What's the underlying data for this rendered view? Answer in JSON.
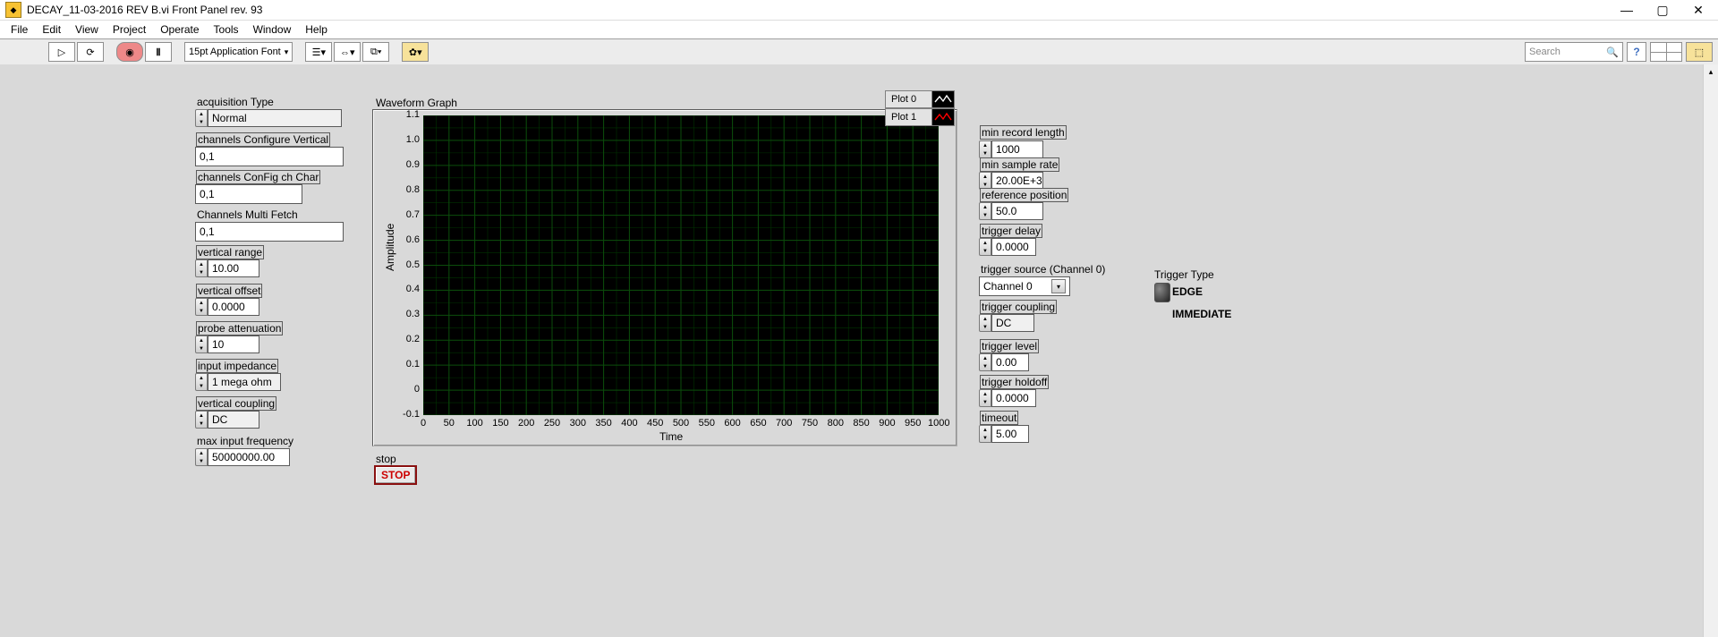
{
  "window": {
    "title": "DECAY_11-03-2016 REV B.vi Front Panel rev. 93"
  },
  "menu": [
    "File",
    "Edit",
    "View",
    "Project",
    "Operate",
    "Tools",
    "Window",
    "Help"
  ],
  "toolbar": {
    "font": "15pt Application Font",
    "search_placeholder": "Search"
  },
  "left": {
    "acqType": {
      "label": "acquisition Type",
      "value": "Normal"
    },
    "chCfgVert": {
      "label": "channels Configure Vertical",
      "value": "0,1"
    },
    "chCfgChar": {
      "label": "channels ConFig ch Char",
      "value": "0,1"
    },
    "chMultiFetch": {
      "label": "Channels Multi Fetch",
      "value": "0,1"
    },
    "vRange": {
      "label": "vertical range",
      "value": "10.00"
    },
    "vOffset": {
      "label": "vertical offset",
      "value": "0.0000"
    },
    "probeAtt": {
      "label": "probe attenuation",
      "value": "10"
    },
    "inImp": {
      "label": "input impedance",
      "value": "1 mega ohm"
    },
    "vCoup": {
      "label": "vertical coupling",
      "value": "DC"
    },
    "maxFreq": {
      "label": "max input frequency",
      "value": "50000000.00"
    }
  },
  "right": {
    "minRecLen": {
      "label": "min record length",
      "value": "1000"
    },
    "minSampRate": {
      "label": "min sample rate",
      "value": "20.00E+3"
    },
    "refPos": {
      "label": "reference position",
      "value": "50.0"
    },
    "trigDelay": {
      "label": "trigger delay",
      "value": "0.0000"
    },
    "trigSrc": {
      "label": "trigger source (Channel 0)",
      "value": "Channel 0"
    },
    "trigCoup": {
      "label": "trigger coupling",
      "value": "DC"
    },
    "trigLevel": {
      "label": "trigger level",
      "value": "0.00"
    },
    "trigHold": {
      "label": "trigger holdoff",
      "value": "0.0000"
    },
    "timeout": {
      "label": "timeout",
      "value": "5.00"
    }
  },
  "triggerType": {
    "label": "Trigger Type",
    "opt1": "EDGE",
    "opt2": "IMMEDIATE"
  },
  "stop": {
    "label": "stop",
    "button": "STOP"
  },
  "graph": {
    "title": "Waveform Graph",
    "xlabel": "Time",
    "ylabel": "Amplitude",
    "xlim": [
      0,
      1000
    ],
    "xtick_step": 50,
    "ylim": [
      -0.1,
      1.1
    ],
    "ytick_step": 0.1,
    "bg": "#000000",
    "grid_color": "#003300",
    "grid_major_color": "#0b4d0b",
    "legend": [
      {
        "label": "Plot 0",
        "color": "#ffffff"
      },
      {
        "label": "Plot 1",
        "color": "#ff0000"
      }
    ]
  }
}
